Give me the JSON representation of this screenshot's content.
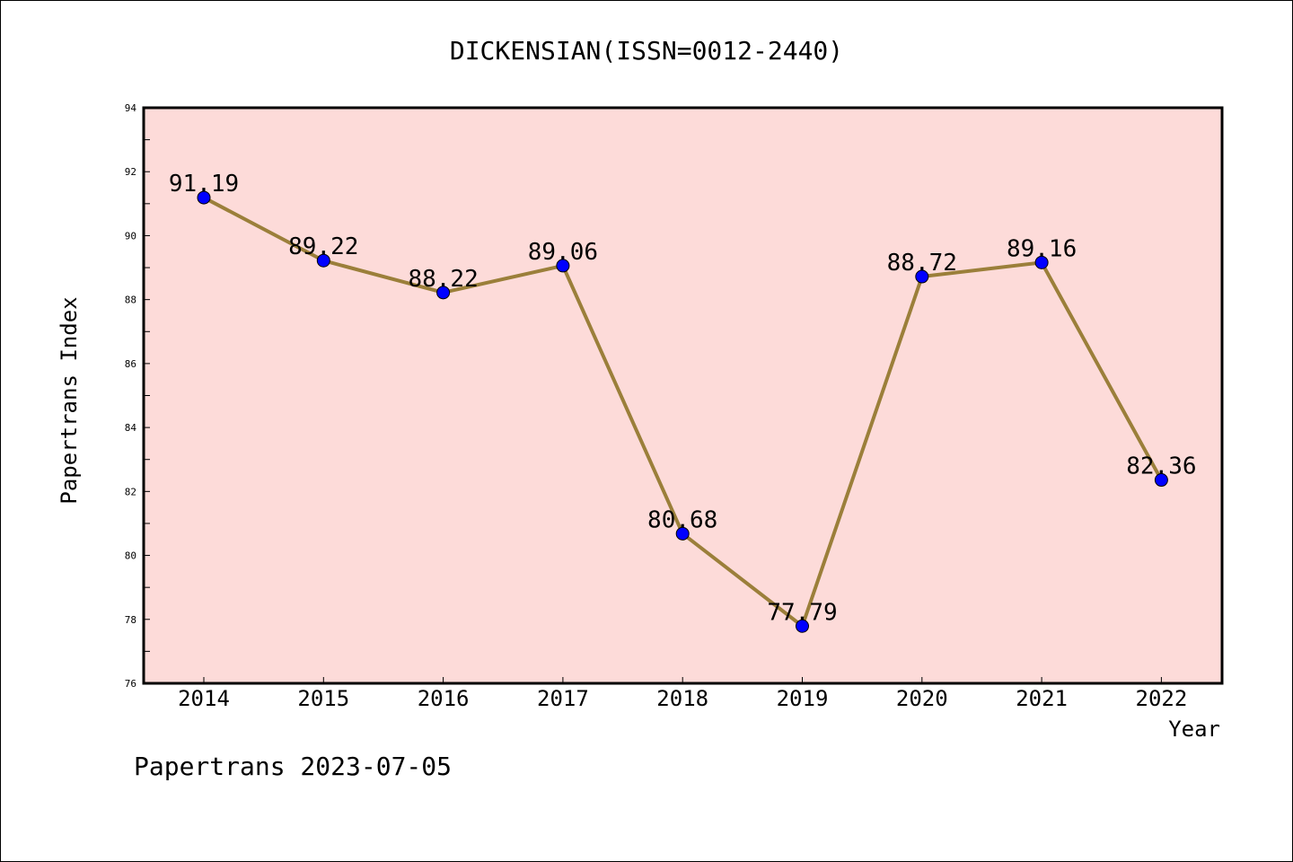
{
  "chart_data": {
    "type": "line",
    "title": "DICKENSIAN(ISSN=0012-2440)",
    "xlabel": "Year",
    "ylabel": "Papertrans Index",
    "x": [
      "2014",
      "2015",
      "2016",
      "2017",
      "2018",
      "2019",
      "2020",
      "2021",
      "2022"
    ],
    "series": [
      {
        "values": [
          91.19,
          89.22,
          88.22,
          89.06,
          80.68,
          77.79,
          88.72,
          89.16,
          82.36
        ]
      }
    ],
    "data_labels": [
      "91.19",
      "89.22",
      "88.22",
      "89.06",
      "80.68",
      "77.79",
      "88.72",
      "89.16",
      "82.36"
    ],
    "ylim": [
      76,
      94
    ],
    "yticks": [
      "76",
      "78",
      "80",
      "82",
      "84",
      "86",
      "88",
      "90",
      "92",
      "94"
    ],
    "grid": false,
    "colors": {
      "plot_background": "#fddbd9",
      "line": "#9b7f3a",
      "marker": "#0000ff"
    }
  },
  "footer": {
    "text": "Papertrans 2023-07-05"
  }
}
